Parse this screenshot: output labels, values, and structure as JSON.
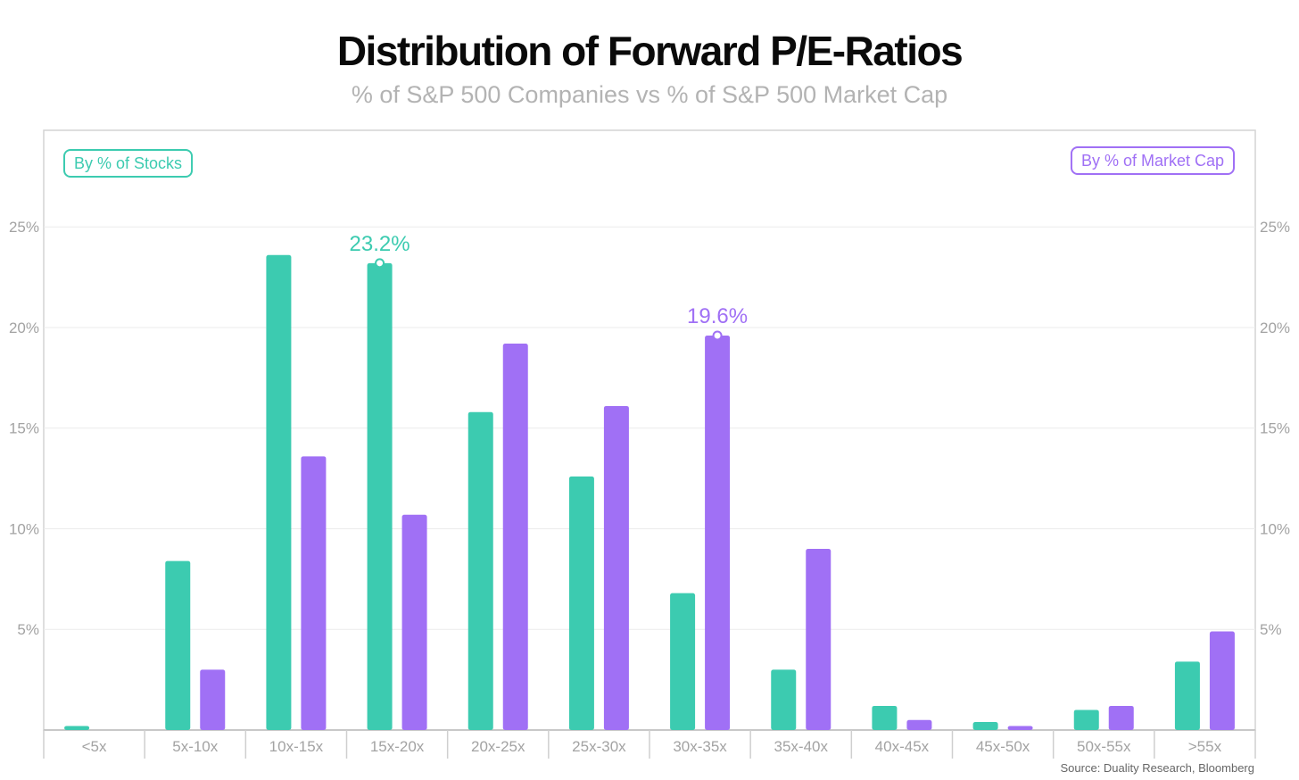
{
  "chart_data": {
    "type": "bar",
    "title": "Distribution of Forward P/E-Ratios",
    "subtitle": "% of S&P 500 Companies vs % of S&P 500 Market Cap",
    "source": "Source: Duality Research, Bloomberg",
    "categories": [
      "<5x",
      "5x-10x",
      "10x-15x",
      "15x-20x",
      "20x-25x",
      "25x-30x",
      "30x-35x",
      "35x-40x",
      "40x-45x",
      "45x-50x",
      "50x-55x",
      ">55x"
    ],
    "series": [
      {
        "name": "By % of Stocks",
        "color": "#3ccbb0",
        "values": [
          0.2,
          8.4,
          23.6,
          23.2,
          15.8,
          12.6,
          6.8,
          3.0,
          1.2,
          0.4,
          1.0,
          3.4
        ]
      },
      {
        "name": "By % of Market Cap",
        "color": "#a070f5",
        "values": [
          0.0,
          3.0,
          13.6,
          10.7,
          19.2,
          16.1,
          19.6,
          9.0,
          0.5,
          0.2,
          1.2,
          4.9
        ]
      }
    ],
    "annotations": [
      {
        "series": 0,
        "category": "15x-20x",
        "label": "23.2%"
      },
      {
        "series": 1,
        "category": "30x-35x",
        "label": "19.6%"
      }
    ],
    "yticks": [
      "5%",
      "10%",
      "15%",
      "20%",
      "25%"
    ],
    "ytick_values": [
      5,
      10,
      15,
      20,
      25
    ],
    "ylim": [
      0,
      29.8
    ],
    "grid": true,
    "legend_positions": [
      "top-left",
      "top-right"
    ]
  }
}
